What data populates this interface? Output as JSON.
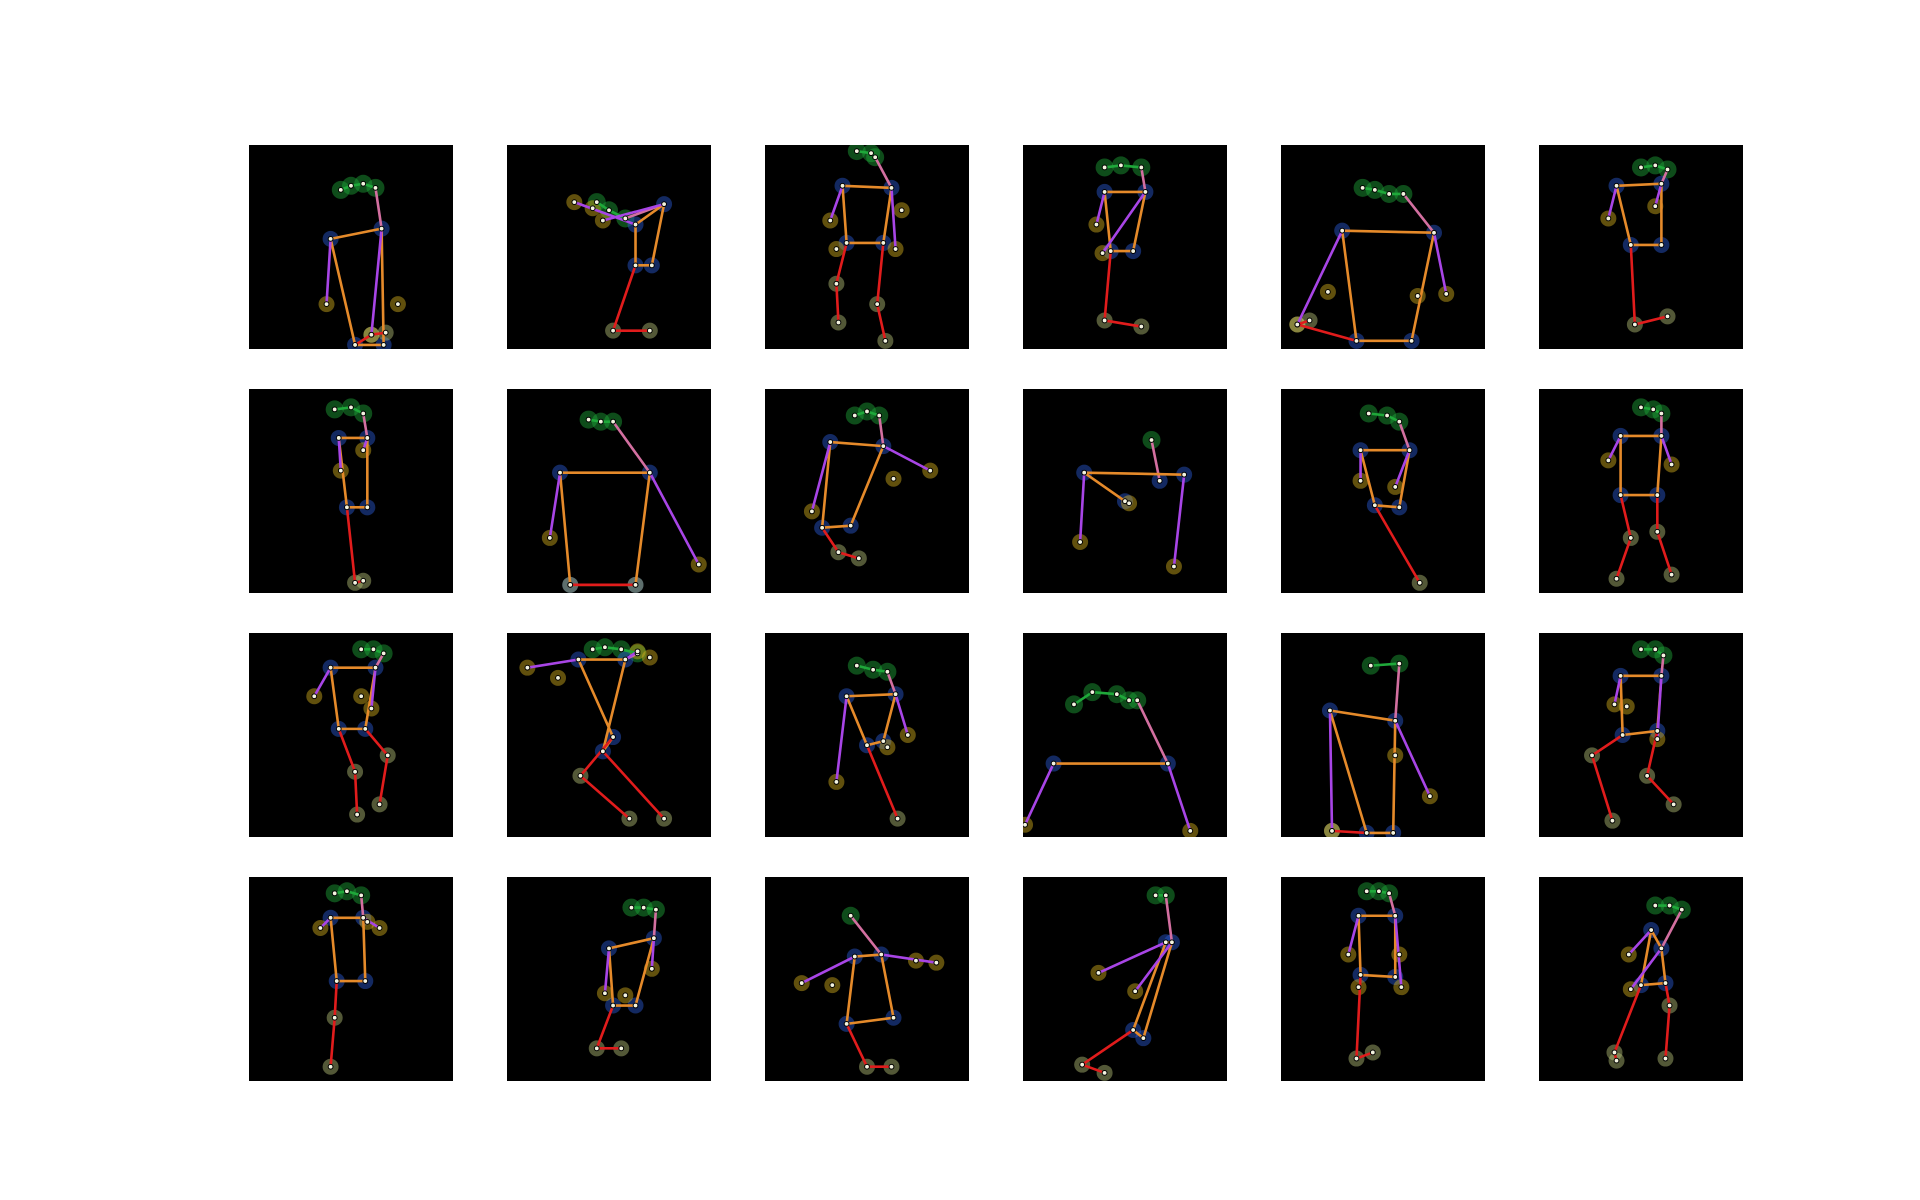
{
  "figure": {
    "rows": 4,
    "cols": 6,
    "background": "#ffffff",
    "panel_background": "#000000"
  },
  "colors": {
    "head": "#1fa83a",
    "head_glow": "#0f7a25",
    "shoulder_hip": "#2a5bd7",
    "hand": "#d8b21c",
    "foot": "#b7c47a",
    "torso": "#e58a2a",
    "left_arm": "#a845e6",
    "right_arm": "#d36fa0",
    "legs": "#e11c1c"
  },
  "poses": [
    {
      "head": [
        [
          45,
          22
        ],
        [
          50,
          20
        ],
        [
          56,
          19
        ],
        [
          62,
          21
        ]
      ],
      "sh": [
        [
          40,
          46
        ],
        [
          65,
          41
        ]
      ],
      "hip": [
        [
          52,
          98
        ],
        [
          66,
          98
        ]
      ],
      "hand": [
        [
          38,
          78
        ],
        [
          73,
          78
        ],
        [
          60,
          93
        ]
      ],
      "foot": [
        [
          60,
          93
        ],
        [
          67,
          92
        ]
      ]
    },
    {
      "head": [
        [
          44,
          28
        ],
        [
          50,
          32
        ],
        [
          58,
          36
        ]
      ],
      "sh": [
        [
          63,
          39
        ],
        [
          77,
          29
        ]
      ],
      "hip": [
        [
          63,
          59
        ],
        [
          71,
          59
        ]
      ],
      "hand": [
        [
          33,
          28
        ],
        [
          42,
          31
        ],
        [
          47,
          37
        ]
      ],
      "foot": [
        [
          52,
          91
        ],
        [
          70,
          91
        ]
      ]
    },
    {
      "head": [
        [
          45,
          3
        ],
        [
          52,
          4
        ],
        [
          54,
          6
        ]
      ],
      "sh": [
        [
          38,
          20
        ],
        [
          62,
          21
        ]
      ],
      "hip": [
        [
          40,
          48
        ],
        [
          58,
          48
        ]
      ],
      "hand": [
        [
          32,
          37
        ],
        [
          35,
          51
        ],
        [
          67,
          32
        ],
        [
          64,
          51
        ]
      ],
      "foot": [
        [
          35,
          68
        ],
        [
          36,
          87
        ],
        [
          55,
          78
        ],
        [
          59,
          96
        ]
      ]
    },
    {
      "head": [
        [
          40,
          11
        ],
        [
          48,
          10
        ],
        [
          58,
          11
        ]
      ],
      "sh": [
        [
          40,
          23
        ],
        [
          60,
          23
        ]
      ],
      "hip": [
        [
          43,
          52
        ],
        [
          54,
          52
        ]
      ],
      "hand": [
        [
          36,
          39
        ],
        [
          39,
          53
        ]
      ],
      "foot": [
        [
          40,
          86
        ],
        [
          58,
          89
        ]
      ]
    },
    {
      "head": [
        [
          40,
          21
        ],
        [
          46,
          22
        ],
        [
          53,
          24
        ],
        [
          60,
          24
        ]
      ],
      "sh": [
        [
          30,
          42
        ],
        [
          75,
          43
        ]
      ],
      "hip": [
        [
          37,
          96
        ],
        [
          64,
          96
        ]
      ],
      "hand": [
        [
          8,
          88
        ],
        [
          23,
          72
        ],
        [
          67,
          74
        ],
        [
          81,
          73
        ]
      ],
      "foot": [
        [
          8,
          88
        ],
        [
          14,
          86
        ]
      ]
    },
    {
      "head": [
        [
          50,
          11
        ],
        [
          57,
          10
        ],
        [
          63,
          12
        ]
      ],
      "sh": [
        [
          38,
          20
        ],
        [
          60,
          19
        ]
      ],
      "hip": [
        [
          45,
          49
        ],
        [
          60,
          49
        ]
      ],
      "hand": [
        [
          34,
          36
        ],
        [
          57,
          30
        ]
      ],
      "foot": [
        [
          47,
          88
        ],
        [
          63,
          84
        ]
      ]
    },
    {
      "head": [
        [
          42,
          10
        ],
        [
          50,
          9
        ],
        [
          56,
          12
        ]
      ],
      "sh": [
        [
          44,
          24
        ],
        [
          58,
          24
        ]
      ],
      "hip": [
        [
          48,
          58
        ],
        [
          58,
          58
        ]
      ],
      "hand": [
        [
          45,
          40
        ],
        [
          56,
          30
        ]
      ],
      "foot": [
        [
          52,
          95
        ],
        [
          56,
          94
        ]
      ]
    },
    {
      "head": [
        [
          40,
          15
        ],
        [
          46,
          16
        ],
        [
          52,
          16
        ]
      ],
      "sh": [
        [
          26,
          41
        ],
        [
          70,
          41
        ]
      ],
      "hip": [
        [
          31,
          96
        ],
        [
          63,
          96
        ]
      ],
      "hand": [
        [
          21,
          73
        ],
        [
          94,
          86
        ]
      ],
      "foot": [
        [
          31,
          96
        ],
        [
          63,
          96
        ]
      ]
    },
    {
      "head": [
        [
          44,
          13
        ],
        [
          50,
          11
        ],
        [
          56,
          13
        ]
      ],
      "sh": [
        [
          32,
          26
        ],
        [
          58,
          28
        ]
      ],
      "hip": [
        [
          28,
          68
        ],
        [
          42,
          67
        ]
      ],
      "hand": [
        [
          23,
          60
        ],
        [
          63,
          44
        ],
        [
          81,
          40
        ]
      ],
      "foot": [
        [
          36,
          80
        ],
        [
          46,
          83
        ]
      ]
    },
    {
      "head": [
        [
          63,
          25
        ]
      ],
      "sh": [
        [
          30,
          41
        ],
        [
          79,
          42
        ],
        [
          67,
          45
        ]
      ],
      "hip": [
        [
          50,
          55
        ]
      ],
      "hand": [
        [
          28,
          75
        ],
        [
          52,
          56
        ],
        [
          74,
          87
        ]
      ],
      "foot": []
    },
    {
      "head": [
        [
          43,
          12
        ],
        [
          52,
          13
        ],
        [
          58,
          16
        ]
      ],
      "sh": [
        [
          39,
          30
        ],
        [
          63,
          30
        ]
      ],
      "hip": [
        [
          46,
          57
        ],
        [
          58,
          58
        ]
      ],
      "hand": [
        [
          39,
          45
        ],
        [
          56,
          48
        ]
      ],
      "foot": [
        [
          68,
          95
        ]
      ]
    },
    {
      "head": [
        [
          50,
          9
        ],
        [
          56,
          10
        ],
        [
          60,
          12
        ]
      ],
      "sh": [
        [
          40,
          23
        ],
        [
          60,
          23
        ]
      ],
      "hip": [
        [
          40,
          52
        ],
        [
          58,
          52
        ]
      ],
      "hand": [
        [
          34,
          35
        ],
        [
          65,
          37
        ]
      ],
      "foot": [
        [
          45,
          73
        ],
        [
          38,
          93
        ],
        [
          58,
          70
        ],
        [
          65,
          91
        ]
      ]
    },
    {
      "head": [
        [
          55,
          8
        ],
        [
          61,
          8
        ],
        [
          66,
          10
        ]
      ],
      "sh": [
        [
          40,
          17
        ],
        [
          62,
          17
        ]
      ],
      "hip": [
        [
          44,
          47
        ],
        [
          57,
          47
        ]
      ],
      "hand": [
        [
          32,
          31
        ],
        [
          55,
          31
        ],
        [
          60,
          37
        ]
      ],
      "foot": [
        [
          52,
          68
        ],
        [
          53,
          89
        ],
        [
          68,
          60
        ],
        [
          64,
          84
        ]
      ]
    },
    {
      "head": [
        [
          42,
          8
        ],
        [
          48,
          7
        ],
        [
          56,
          8
        ],
        [
          64,
          10
        ]
      ],
      "sh": [
        [
          35,
          13
        ],
        [
          58,
          13
        ]
      ],
      "hip": [
        [
          52,
          51
        ],
        [
          47,
          58
        ]
      ],
      "hand": [
        [
          10,
          17
        ],
        [
          25,
          22
        ],
        [
          70,
          12
        ],
        [
          64,
          9
        ]
      ],
      "foot": [
        [
          36,
          70
        ],
        [
          60,
          91
        ],
        [
          77,
          91
        ]
      ]
    },
    {
      "head": [
        [
          45,
          16
        ],
        [
          53,
          18
        ],
        [
          60,
          19
        ]
      ],
      "sh": [
        [
          40,
          31
        ],
        [
          64,
          30
        ]
      ],
      "hip": [
        [
          50,
          55
        ],
        [
          58,
          53
        ]
      ],
      "hand": [
        [
          35,
          73
        ],
        [
          60,
          56
        ],
        [
          70,
          50
        ]
      ],
      "foot": [
        [
          65,
          91
        ]
      ]
    },
    {
      "head": [
        [
          25,
          35
        ],
        [
          34,
          29
        ],
        [
          46,
          30
        ],
        [
          52,
          33
        ],
        [
          56,
          33
        ]
      ],
      "sh": [
        [
          15,
          64
        ],
        [
          71,
          64
        ]
      ],
      "hip": [],
      "hand": [
        [
          1,
          94
        ],
        [
          82,
          97
        ]
      ],
      "foot": []
    },
    {
      "head": [
        [
          44,
          16
        ],
        [
          58,
          15
        ]
      ],
      "sh": [
        [
          24,
          38
        ],
        [
          56,
          43
        ]
      ],
      "hip": [
        [
          42,
          98
        ],
        [
          55,
          98
        ]
      ],
      "hand": [
        [
          25,
          97
        ],
        [
          56,
          60
        ],
        [
          73,
          80
        ]
      ],
      "foot": [
        [
          25,
          97
        ]
      ]
    },
    {
      "head": [
        [
          50,
          8
        ],
        [
          57,
          8
        ],
        [
          61,
          11
        ]
      ],
      "sh": [
        [
          40,
          21
        ],
        [
          60,
          21
        ]
      ],
      "hip": [
        [
          41,
          50
        ],
        [
          58,
          48
        ]
      ],
      "hand": [
        [
          37,
          35
        ],
        [
          43,
          36
        ],
        [
          58,
          52
        ]
      ],
      "foot": [
        [
          26,
          60
        ],
        [
          36,
          92
        ],
        [
          53,
          70
        ],
        [
          66,
          84
        ]
      ]
    },
    {
      "head": [
        [
          42,
          8
        ],
        [
          48,
          7
        ],
        [
          55,
          9
        ]
      ],
      "sh": [
        [
          40,
          20
        ],
        [
          56,
          20
        ]
      ],
      "hip": [
        [
          43,
          51
        ],
        [
          57,
          51
        ]
      ],
      "hand": [
        [
          35,
          25
        ],
        [
          58,
          22
        ],
        [
          64,
          25
        ]
      ],
      "foot": [
        [
          42,
          69
        ],
        [
          40,
          93
        ]
      ]
    },
    {
      "head": [
        [
          61,
          15
        ],
        [
          67,
          15
        ],
        [
          73,
          16
        ]
      ],
      "sh": [
        [
          50,
          35
        ],
        [
          72,
          30
        ]
      ],
      "hip": [
        [
          52,
          63
        ],
        [
          63,
          63
        ]
      ],
      "hand": [
        [
          48,
          57
        ],
        [
          58,
          58
        ],
        [
          71,
          45
        ]
      ],
      "foot": [
        [
          44,
          84
        ],
        [
          56,
          84
        ]
      ]
    },
    {
      "head": [
        [
          42,
          19
        ]
      ],
      "sh": [
        [
          44,
          39
        ],
        [
          57,
          38
        ]
      ],
      "hip": [
        [
          40,
          72
        ],
        [
          63,
          69
        ]
      ],
      "hand": [
        [
          18,
          52
        ],
        [
          33,
          53
        ],
        [
          74,
          41
        ],
        [
          84,
          42
        ]
      ],
      "foot": [
        [
          50,
          93
        ],
        [
          62,
          93
        ]
      ]
    },
    {
      "head": [
        [
          65,
          9
        ],
        [
          70,
          9
        ]
      ],
      "sh": [
        [
          70,
          32
        ],
        [
          73,
          32
        ]
      ],
      "hip": [
        [
          54,
          75
        ],
        [
          59,
          79
        ]
      ],
      "hand": [
        [
          37,
          47
        ],
        [
          55,
          56
        ]
      ],
      "foot": [
        [
          29,
          92
        ],
        [
          40,
          96
        ]
      ]
    },
    {
      "head": [
        [
          42,
          7
        ],
        [
          48,
          7
        ],
        [
          53,
          8
        ]
      ],
      "sh": [
        [
          38,
          19
        ],
        [
          56,
          19
        ]
      ],
      "hip": [
        [
          39,
          48
        ],
        [
          56,
          49
        ]
      ],
      "hand": [
        [
          33,
          38
        ],
        [
          38,
          54
        ],
        [
          58,
          38
        ],
        [
          59,
          54
        ]
      ],
      "foot": [
        [
          37,
          89
        ],
        [
          45,
          86
        ]
      ]
    },
    {
      "head": [
        [
          57,
          14
        ],
        [
          64,
          14
        ],
        [
          70,
          16
        ]
      ],
      "sh": [
        [
          55,
          26
        ],
        [
          60,
          35
        ]
      ],
      "hip": [
        [
          50,
          53
        ],
        [
          62,
          52
        ]
      ],
      "hand": [
        [
          44,
          38
        ],
        [
          45,
          55
        ]
      ],
      "foot": [
        [
          37,
          86
        ],
        [
          38,
          90
        ],
        [
          64,
          63
        ],
        [
          62,
          89
        ]
      ]
    }
  ]
}
